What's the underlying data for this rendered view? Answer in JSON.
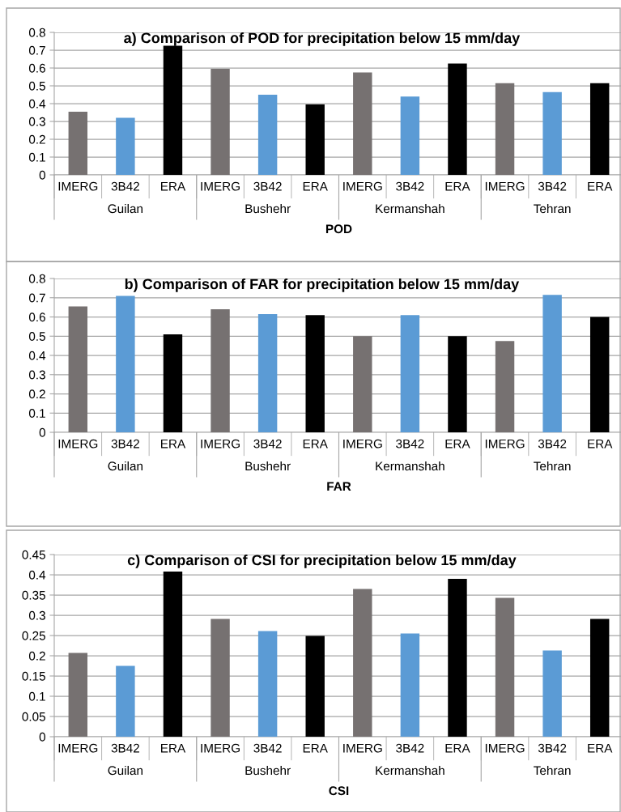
{
  "chart_data": [
    {
      "type": "bar",
      "title": "a) Comparison of POD for precipitation below 15 mm/day",
      "xlabel": "POD",
      "categories": [
        "IMERG",
        "3B42",
        "ERA",
        "IMERG",
        "3B42",
        "ERA",
        "IMERG",
        "3B42",
        "ERA",
        "IMERG",
        "3B42",
        "ERA"
      ],
      "values": [
        0.355,
        0.32,
        0.725,
        0.595,
        0.45,
        0.395,
        0.575,
        0.44,
        0.625,
        0.515,
        0.465,
        0.515
      ],
      "colors": [
        "#767171",
        "#5b9bd5",
        "#000000",
        "#767171",
        "#5b9bd5",
        "#000000",
        "#767171",
        "#5b9bd5",
        "#000000",
        "#767171",
        "#5b9bd5",
        "#000000"
      ],
      "annotations": [
        "Guilan",
        "Bushehr",
        "Kermanshah",
        "Tehran"
      ],
      "ylim": [
        0,
        0.8
      ],
      "yticks": [
        0,
        0.1,
        0.2,
        0.3,
        0.4,
        0.5,
        0.6,
        0.7,
        0.8
      ],
      "grid": "y"
    },
    {
      "type": "bar",
      "title": "b) Comparison of FAR for precipitation below 15 mm/day",
      "xlabel": "FAR",
      "categories": [
        "IMERG",
        "3B42",
        "ERA",
        "IMERG",
        "3B42",
        "ERA",
        "IMERG",
        "3B42",
        "ERA",
        "IMERG",
        "3B42",
        "ERA"
      ],
      "values": [
        0.655,
        0.71,
        0.51,
        0.64,
        0.615,
        0.61,
        0.5,
        0.61,
        0.5,
        0.475,
        0.715,
        0.6
      ],
      "colors": [
        "#767171",
        "#5b9bd5",
        "#000000",
        "#767171",
        "#5b9bd5",
        "#000000",
        "#767171",
        "#5b9bd5",
        "#000000",
        "#767171",
        "#5b9bd5",
        "#000000"
      ],
      "annotations": [
        "Guilan",
        "Bushehr",
        "Kermanshah",
        "Tehran"
      ],
      "ylim": [
        0,
        0.8
      ],
      "yticks": [
        0,
        0.1,
        0.2,
        0.3,
        0.4,
        0.5,
        0.6,
        0.7,
        0.8
      ],
      "grid": "y"
    },
    {
      "type": "bar",
      "title": "c) Comparison of CSI for precipitation below 15 mm/day",
      "xlabel": "CSI",
      "categories": [
        "IMERG",
        "3B42",
        "ERA",
        "IMERG",
        "3B42",
        "ERA",
        "IMERG",
        "3B42",
        "ERA",
        "IMERG",
        "3B42",
        "ERA"
      ],
      "values": [
        0.207,
        0.175,
        0.408,
        0.291,
        0.261,
        0.249,
        0.365,
        0.255,
        0.39,
        0.343,
        0.213,
        0.291
      ],
      "colors": [
        "#767171",
        "#5b9bd5",
        "#000000",
        "#767171",
        "#5b9bd5",
        "#000000",
        "#767171",
        "#5b9bd5",
        "#000000",
        "#767171",
        "#5b9bd5",
        "#000000"
      ],
      "annotations": [
        "Guilan",
        "Bushehr",
        "Kermanshah",
        "Tehran"
      ],
      "ylim": [
        0,
        0.45
      ],
      "yticks": [
        0,
        0.05,
        0.1,
        0.15,
        0.2,
        0.25,
        0.3,
        0.35,
        0.4,
        0.45
      ],
      "grid": "y"
    }
  ]
}
